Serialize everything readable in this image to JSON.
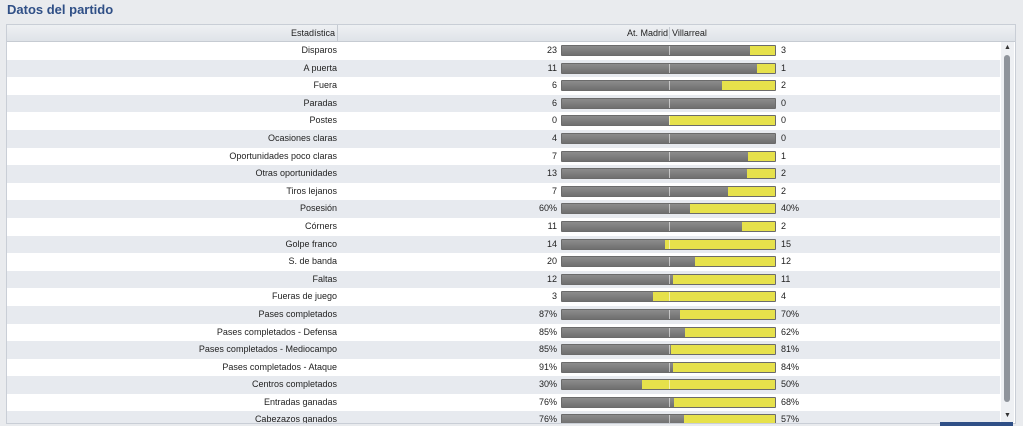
{
  "panel": {
    "title": "Datos del partido"
  },
  "header": {
    "stat": "Estadística",
    "home": "At. Madrid",
    "away": "Villarreal"
  },
  "colors": {
    "home": "#7d7d7d",
    "away": "#e6e14b",
    "title": "#2f4f86"
  },
  "rows": [
    {
      "label": "Disparos",
      "home": "23",
      "away": "3",
      "home_share": 0.884
    },
    {
      "label": "A puerta",
      "home": "11",
      "away": "1",
      "home_share": 0.917
    },
    {
      "label": "Fuera",
      "home": "6",
      "away": "2",
      "home_share": 0.75
    },
    {
      "label": "Paradas",
      "home": "6",
      "away": "0",
      "home_share": 1.0
    },
    {
      "label": "Postes",
      "home": "0",
      "away": "0",
      "home_share": 0.5
    },
    {
      "label": "Ocasiones claras",
      "home": "4",
      "away": "0",
      "home_share": 1.0
    },
    {
      "label": "Oportunidades poco claras",
      "home": "7",
      "away": "1",
      "home_share": 0.875
    },
    {
      "label": "Otras oportunidades",
      "home": "13",
      "away": "2",
      "home_share": 0.867
    },
    {
      "label": "Tiros lejanos",
      "home": "7",
      "away": "2",
      "home_share": 0.778
    },
    {
      "label": "Posesión",
      "home": "60%",
      "away": "40%",
      "home_share": 0.6
    },
    {
      "label": "Córners",
      "home": "11",
      "away": "2",
      "home_share": 0.846
    },
    {
      "label": "Golpe franco",
      "home": "14",
      "away": "15",
      "home_share": 0.483
    },
    {
      "label": "S. de banda",
      "home": "20",
      "away": "12",
      "home_share": 0.625
    },
    {
      "label": "Faltas",
      "home": "12",
      "away": "11",
      "home_share": 0.522
    },
    {
      "label": "Fueras de juego",
      "home": "3",
      "away": "4",
      "home_share": 0.429
    },
    {
      "label": "Pases completados",
      "home": "87%",
      "away": "70%",
      "home_share": 0.554
    },
    {
      "label": "Pases completados - Defensa",
      "home": "85%",
      "away": "62%",
      "home_share": 0.578
    },
    {
      "label": "Pases completados - Mediocampo",
      "home": "85%",
      "away": "81%",
      "home_share": 0.512
    },
    {
      "label": "Pases completados - Ataque",
      "home": "91%",
      "away": "84%",
      "home_share": 0.52
    },
    {
      "label": "Centros completados",
      "home": "30%",
      "away": "50%",
      "home_share": 0.375
    },
    {
      "label": "Entradas ganadas",
      "home": "76%",
      "away": "68%",
      "home_share": 0.528
    },
    {
      "label": "Cabezazos ganados",
      "home": "76%",
      "away": "57%",
      "home_share": 0.571
    }
  ]
}
